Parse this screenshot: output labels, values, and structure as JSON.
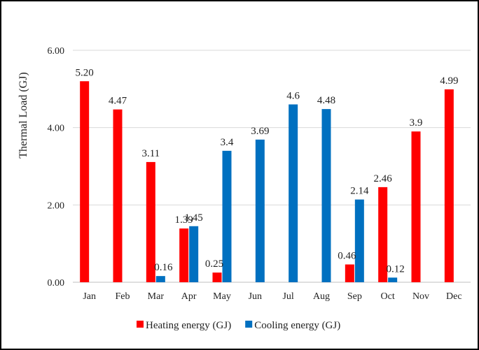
{
  "chart_data": {
    "type": "bar",
    "title": "",
    "xlabel": "",
    "ylabel": "Thermal Load  (GJ)",
    "ylim": [
      0,
      6
    ],
    "yticks": [
      "0.00",
      "2.00",
      "4.00",
      "6.00"
    ],
    "grid": true,
    "legend_position": "bottom",
    "categories": [
      "Jan",
      "Feb",
      "Mar",
      "Apr",
      "May",
      "Jun",
      "Jul",
      "Aug",
      "Sep",
      "Oct",
      "Nov",
      "Dec"
    ],
    "series": [
      {
        "name": "Heating energy (GJ)",
        "color": "#ff0000",
        "values": [
          5.2,
          4.47,
          3.11,
          1.39,
          0.25,
          null,
          null,
          null,
          0.46,
          2.46,
          3.9,
          4.99
        ],
        "labels": [
          "5.20",
          "4.47",
          "3.11",
          "1.39",
          "0.25",
          "",
          "",
          "",
          "0.46",
          "2.46",
          "3.9",
          "4.99"
        ]
      },
      {
        "name": "Cooling energy (GJ)",
        "color": "#0070c0",
        "values": [
          null,
          null,
          0.16,
          1.45,
          3.4,
          3.69,
          4.6,
          4.48,
          2.14,
          0.12,
          null,
          null
        ],
        "labels": [
          "",
          "",
          "0.16",
          "1.45",
          "3.4",
          "3.69",
          "4.6",
          "4.48",
          "2.14",
          "0.12",
          "",
          ""
        ]
      }
    ]
  }
}
